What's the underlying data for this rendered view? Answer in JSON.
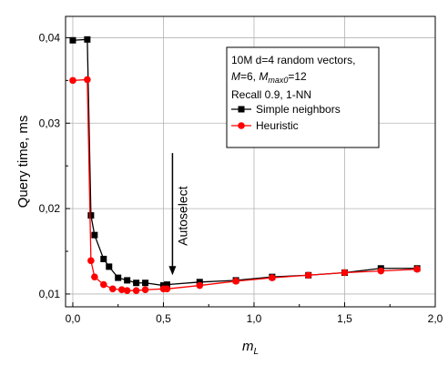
{
  "chart_data": {
    "type": "line",
    "xlabel": "m",
    "xlabel_sub": "L",
    "ylabel": "Query time, ms",
    "xlim": [
      -0.04,
      2.0
    ],
    "ylim": [
      0.0085,
      0.0425
    ],
    "xticks": [
      0.0,
      0.5,
      1.0,
      1.5,
      2.0
    ],
    "xtick_labels": [
      "0,0",
      "0,5",
      "1,0",
      "1,5",
      "2,0"
    ],
    "yticks": [
      0.01,
      0.02,
      0.03,
      0.04
    ],
    "ytick_labels": [
      "0,01",
      "0,02",
      "0,03",
      "0,04"
    ],
    "grid": true,
    "legend_placement": "top-right",
    "legend_header": {
      "line1": "10M d=4 random vectors,",
      "line2_m": "M",
      "line2_m_val": "=6, ",
      "line2_mmax": "M",
      "line2_mmax_sub": "max0",
      "line2_mmax_val": "=12",
      "line3": "Recall 0.9, 1-NN"
    },
    "annotation": {
      "text": "Autoselect",
      "arrow_x": 0.55,
      "arrow_from_y": 0.0265,
      "arrow_to_y": 0.0122
    },
    "series": [
      {
        "name": "Simple neighbors",
        "color": "#000000",
        "marker": "square",
        "x": [
          0.0,
          0.08,
          0.1,
          0.12,
          0.17,
          0.2,
          0.25,
          0.3,
          0.35,
          0.4,
          0.5,
          0.52,
          0.7,
          0.9,
          1.1,
          1.3,
          1.5,
          1.7,
          1.9
        ],
        "y": [
          0.0397,
          0.0398,
          0.0192,
          0.0169,
          0.0141,
          0.0132,
          0.0119,
          0.0116,
          0.0113,
          0.0113,
          0.011,
          0.0111,
          0.0114,
          0.0116,
          0.012,
          0.0122,
          0.0125,
          0.013,
          0.013
        ]
      },
      {
        "name": "Heuristic",
        "color": "#ff0000",
        "marker": "circle",
        "x": [
          0.0,
          0.08,
          0.1,
          0.12,
          0.17,
          0.22,
          0.27,
          0.3,
          0.35,
          0.4,
          0.5,
          0.52,
          0.7,
          0.9,
          1.1,
          1.3,
          1.5,
          1.7,
          1.9
        ],
        "y": [
          0.035,
          0.0351,
          0.0139,
          0.012,
          0.0111,
          0.0106,
          0.0105,
          0.0104,
          0.0104,
          0.0105,
          0.0106,
          0.0106,
          0.011,
          0.0115,
          0.0119,
          0.0122,
          0.0125,
          0.0127,
          0.0129
        ]
      }
    ]
  }
}
